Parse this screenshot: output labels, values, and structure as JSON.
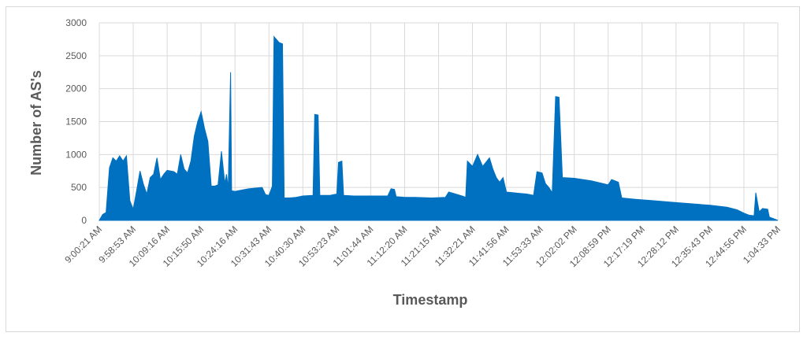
{
  "chart_data": {
    "type": "area",
    "title": "",
    "xlabel": "Timestamp",
    "ylabel": "Number of AS's",
    "ylim": [
      0,
      3000
    ],
    "yticks": [
      0,
      500,
      1000,
      1500,
      2000,
      2500,
      3000
    ],
    "grid": true,
    "legend": "none",
    "color": "#0070C0",
    "x_tick_labels": [
      "9:00:21 AM",
      "9:58:53 AM",
      "10:09:16 AM",
      "10:15:50 AM",
      "10:24:16 AM",
      "10:31:43 AM",
      "10:40:30 AM",
      "10:53:23 AM",
      "11:01:44 AM",
      "11:12:20 AM",
      "11:21:15 AM",
      "11:32:21 AM",
      "11:41:56 AM",
      "11:53:33 AM",
      "12:02:02 PM",
      "12:08:59 PM",
      "12:17:19 PM",
      "12:28:12 PM",
      "12:35:43 PM",
      "12:44:56 PM",
      "1:04:33 PM"
    ],
    "series": [
      {
        "values": [
          [
            0,
            0
          ],
          [
            0.1,
            90
          ],
          [
            0.2,
            120
          ],
          [
            0.3,
            800
          ],
          [
            0.4,
            950
          ],
          [
            0.5,
            900
          ],
          [
            0.6,
            980
          ],
          [
            0.7,
            900
          ],
          [
            0.8,
            980
          ],
          [
            0.9,
            300
          ],
          [
            1.0,
            170
          ],
          [
            1.1,
            450
          ],
          [
            1.2,
            750
          ],
          [
            1.3,
            550
          ],
          [
            1.4,
            400
          ],
          [
            1.5,
            650
          ],
          [
            1.6,
            700
          ],
          [
            1.7,
            950
          ],
          [
            1.8,
            620
          ],
          [
            1.9,
            700
          ],
          [
            2.0,
            760
          ],
          [
            2.1,
            750
          ],
          [
            2.2,
            740
          ],
          [
            2.3,
            700
          ],
          [
            2.4,
            1000
          ],
          [
            2.5,
            780
          ],
          [
            2.6,
            720
          ],
          [
            2.7,
            900
          ],
          [
            2.8,
            1280
          ],
          [
            2.9,
            1500
          ],
          [
            3.0,
            1650
          ],
          [
            3.1,
            1400
          ],
          [
            3.2,
            1200
          ],
          [
            3.3,
            520
          ],
          [
            3.4,
            520
          ],
          [
            3.5,
            540
          ],
          [
            3.6,
            1050
          ],
          [
            3.7,
            560
          ],
          [
            3.75,
            700
          ],
          [
            3.8,
            490
          ],
          [
            3.87,
            2250
          ],
          [
            3.9,
            450
          ],
          [
            4.0,
            440
          ],
          [
            4.2,
            460
          ],
          [
            4.4,
            480
          ],
          [
            4.6,
            490
          ],
          [
            4.8,
            500
          ],
          [
            4.9,
            390
          ],
          [
            5.0,
            380
          ],
          [
            5.1,
            520
          ],
          [
            5.15,
            2790
          ],
          [
            5.3,
            2700
          ],
          [
            5.4,
            2680
          ],
          [
            5.45,
            340
          ],
          [
            5.6,
            340
          ],
          [
            5.8,
            350
          ],
          [
            6.0,
            370
          ],
          [
            6.3,
            380
          ],
          [
            6.35,
            1610
          ],
          [
            6.45,
            1600
          ],
          [
            6.5,
            380
          ],
          [
            6.8,
            380
          ],
          [
            7.0,
            400
          ],
          [
            7.05,
            880
          ],
          [
            7.15,
            900
          ],
          [
            7.2,
            380
          ],
          [
            7.5,
            370
          ],
          [
            8.0,
            370
          ],
          [
            8.5,
            370
          ],
          [
            8.6,
            480
          ],
          [
            8.7,
            470
          ],
          [
            8.75,
            360
          ],
          [
            9.0,
            350
          ],
          [
            9.3,
            350
          ],
          [
            9.8,
            340
          ],
          [
            10.2,
            350
          ],
          [
            10.3,
            430
          ],
          [
            10.5,
            400
          ],
          [
            10.7,
            370
          ],
          [
            10.8,
            350
          ],
          [
            10.85,
            900
          ],
          [
            11.0,
            820
          ],
          [
            11.15,
            1000
          ],
          [
            11.3,
            820
          ],
          [
            11.5,
            950
          ],
          [
            11.6,
            780
          ],
          [
            11.7,
            650
          ],
          [
            11.8,
            580
          ],
          [
            11.9,
            650
          ],
          [
            12.0,
            430
          ],
          [
            12.4,
            410
          ],
          [
            12.6,
            400
          ],
          [
            12.8,
            380
          ],
          [
            12.9,
            740
          ],
          [
            13.05,
            720
          ],
          [
            13.15,
            560
          ],
          [
            13.25,
            500
          ],
          [
            13.35,
            420
          ],
          [
            13.45,
            1880
          ],
          [
            13.55,
            1870
          ],
          [
            13.65,
            650
          ],
          [
            14.0,
            640
          ],
          [
            14.5,
            600
          ],
          [
            15.0,
            540
          ],
          [
            15.1,
            620
          ],
          [
            15.3,
            580
          ],
          [
            15.4,
            340
          ],
          [
            15.8,
            320
          ],
          [
            16.3,
            300
          ],
          [
            17.0,
            270
          ],
          [
            18.0,
            230
          ],
          [
            18.5,
            200
          ],
          [
            18.8,
            160
          ],
          [
            19.0,
            110
          ],
          [
            19.15,
            80
          ],
          [
            19.3,
            70
          ],
          [
            19.35,
            420
          ],
          [
            19.45,
            130
          ],
          [
            19.55,
            180
          ],
          [
            19.7,
            170
          ],
          [
            19.75,
            50
          ],
          [
            19.85,
            30
          ],
          [
            20.0,
            0
          ]
        ]
      }
    ]
  }
}
